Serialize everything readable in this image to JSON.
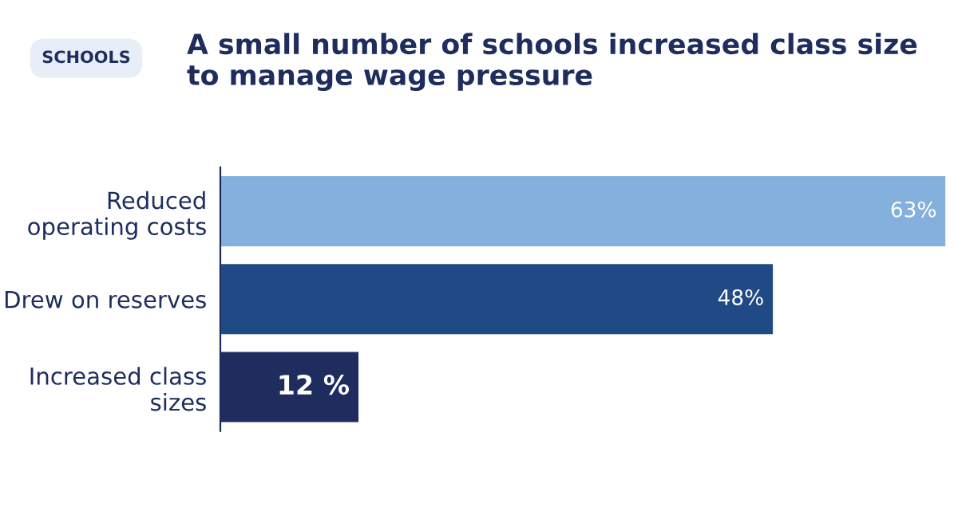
{
  "chart_data": {
    "type": "bar",
    "orientation": "horizontal",
    "title": "A small number of schools increased class size to manage wage pressure",
    "annotations": [
      "SCHOOLS"
    ],
    "categories": [
      "Reduced\noperating costs",
      "Drew on reserves",
      "Increased class\nsizes"
    ],
    "values": [
      63,
      48,
      12
    ],
    "colors": [
      "#84b0dd",
      "#1f4a85",
      "#1e2d5e"
    ],
    "value_labels": [
      "63%",
      "48%",
      "12 %"
    ],
    "xlim": [
      0,
      63
    ],
    "tick_labels": "y",
    "grid": false,
    "legend": false
  }
}
